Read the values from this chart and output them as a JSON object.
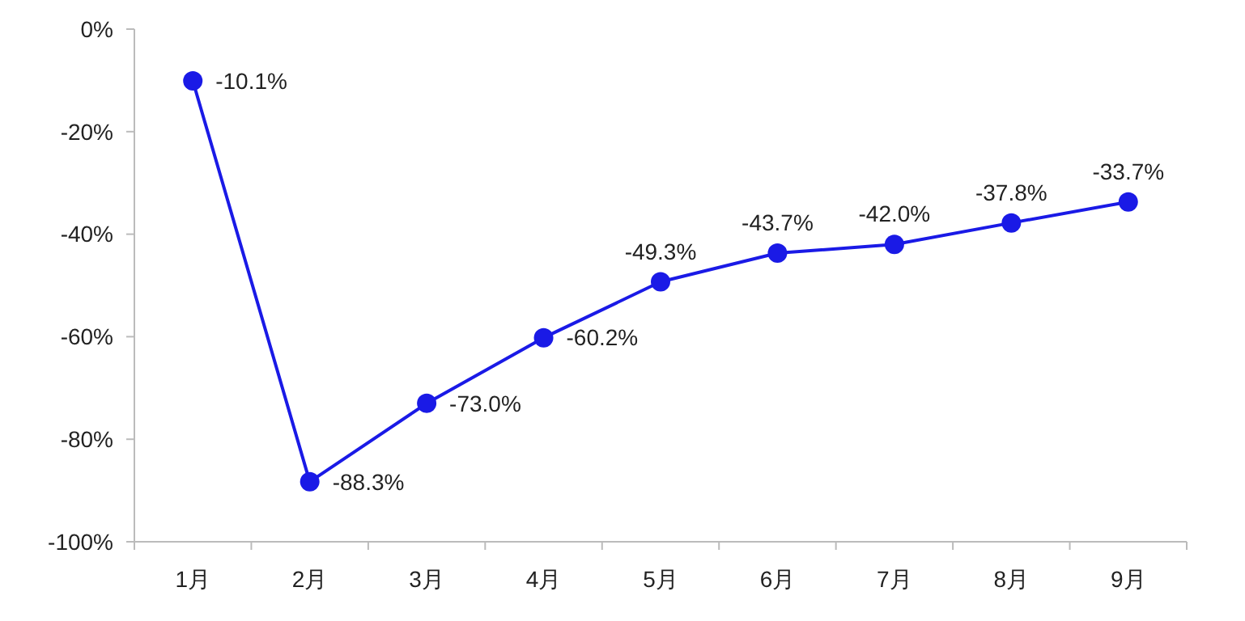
{
  "chart_data": {
    "type": "line",
    "categories": [
      "1月",
      "2月",
      "3月",
      "4月",
      "5月",
      "6月",
      "7月",
      "8月",
      "9月"
    ],
    "series": [
      {
        "color": "#1a1ae6",
        "values": [
          -10.1,
          -88.3,
          -73.0,
          -60.2,
          -49.3,
          -43.7,
          -42.0,
          -37.8,
          -33.7
        ]
      }
    ],
    "ylim": [
      -100,
      0
    ],
    "yticks": [
      {
        "value": -100,
        "label": "-100%"
      },
      {
        "value": -80,
        "label": "-80%"
      },
      {
        "value": -60,
        "label": "-60%"
      },
      {
        "value": -40,
        "label": "-40%"
      },
      {
        "value": -20,
        "label": "-20%"
      },
      {
        "value": 0,
        "label": "0%"
      }
    ],
    "value_labels": [
      "-10.1%",
      "-88.3%",
      "-73.0%",
      "-60.2%",
      "-49.3%",
      "-43.7%",
      "-42.0%",
      "-37.8%",
      "-33.7%"
    ],
    "marker": "circle",
    "line_style": "solid"
  }
}
